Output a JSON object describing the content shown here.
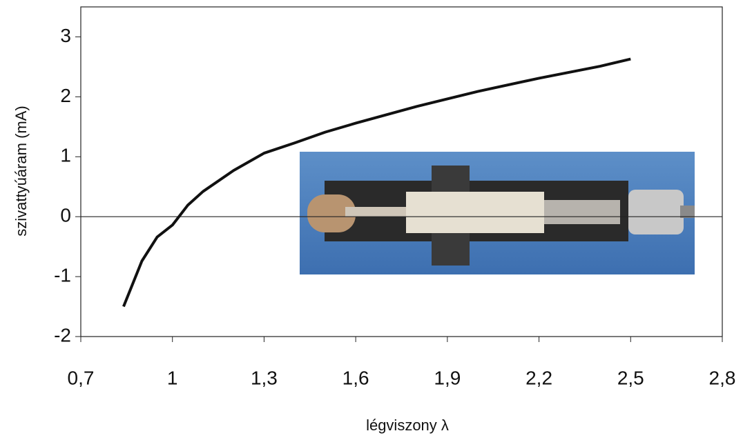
{
  "chart_data": {
    "type": "line",
    "x_label": "légviszony λ",
    "y_label": "szivattyúáram (mA)",
    "xlim": [
      0.7,
      2.8
    ],
    "xticks": [
      {
        "value": 0.7,
        "label": "0,7"
      },
      1,
      {
        "value": 1.3,
        "label": "1,3"
      },
      {
        "value": 1.6,
        "label": "1,6"
      },
      {
        "value": 1.9,
        "label": "1,9"
      },
      {
        "value": 2.2,
        "label": "2,2"
      },
      {
        "value": 2.5,
        "label": "2,5"
      },
      {
        "value": 2.8,
        "label": "2,8"
      }
    ],
    "ylim": [
      -2,
      3.5
    ],
    "yticks": [
      -2,
      -1,
      0,
      1,
      2,
      3
    ],
    "grid": false,
    "series": [
      {
        "color": "#111111",
        "x": [
          0.84,
          0.9,
          0.95,
          1.0,
          1.05,
          1.1,
          1.2,
          1.3,
          1.4,
          1.5,
          1.6,
          1.8,
          2.0,
          2.2,
          2.4,
          2.5
        ],
        "values": [
          -1.5,
          -0.74,
          -0.34,
          -0.14,
          0.19,
          0.42,
          0.77,
          1.06,
          1.23,
          1.41,
          1.56,
          1.84,
          2.09,
          2.31,
          2.51,
          2.63
        ]
      }
    ]
  }
}
